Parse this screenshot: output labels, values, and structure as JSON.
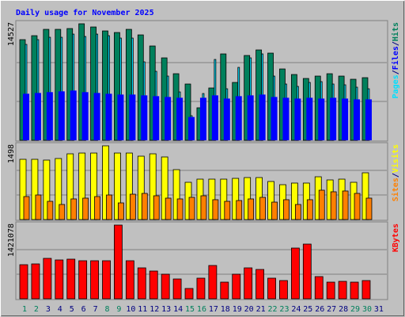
{
  "chart_data": [
    {
      "type": "bar",
      "title": "Daily usage for November 2025",
      "title_color": "#0000ff",
      "categories": [
        "1",
        "2",
        "3",
        "4",
        "5",
        "6",
        "7",
        "8",
        "9",
        "10",
        "11",
        "12",
        "13",
        "14",
        "15",
        "16",
        "17",
        "18",
        "19",
        "20",
        "21",
        "22",
        "23",
        "24",
        "25",
        "26",
        "27",
        "28",
        "29",
        "30",
        "31"
      ],
      "category_colors": [
        "#00805c",
        "#00805c",
        "#000080",
        "#000080",
        "#000080",
        "#000080",
        "#000080",
        "#00805c",
        "#00805c",
        "#000080",
        "#000080",
        "#000080",
        "#000080",
        "#000080",
        "#00805c",
        "#00805c",
        "#000080",
        "#000080",
        "#000080",
        "#000080",
        "#000080",
        "#00805c",
        "#00805c",
        "#000080",
        "#000080",
        "#000080",
        "#000080",
        "#000080",
        "#00805c",
        "#00805c",
        "#000080"
      ],
      "legend_separator": "/",
      "ylim": [
        0,
        14527
      ],
      "yticks": [
        14527
      ],
      "series": [
        {
          "name": "Hits",
          "color": "#00805c",
          "values": [
            12548,
            13042,
            13832,
            13832,
            13931,
            14527,
            14128,
            13634,
            13437,
            13832,
            13140,
            11757,
            10275,
            8299,
            7015,
            4051,
            6521,
            10769,
            7212,
            10572,
            11263,
            10868,
            8892,
            8200,
            7706,
            8003,
            8299,
            8003,
            7608,
            7805,
            0
          ]
        },
        {
          "name": "Files",
          "color": "#0000ff",
          "values": [
            5800,
            5900,
            6000,
            6100,
            6200,
            6000,
            5900,
            5800,
            5700,
            5700,
            5600,
            5500,
            5400,
            5300,
            2900,
            5300,
            5600,
            5200,
            5500,
            5600,
            5700,
            5400,
            5300,
            5200,
            5300,
            5200,
            5300,
            5200,
            5100,
            5100,
            0
          ]
        },
        {
          "name": "Pages",
          "color": "#00e0ff",
          "values": [
            11955,
            12548,
            12844,
            12844,
            13239,
            12943,
            13239,
            13042,
            12745,
            12745,
            9781,
            8596,
            8003,
            6027,
            3063,
            5829,
            10078,
            6422,
            9090,
            10275,
            10769,
            8003,
            7015,
            6718,
            7212,
            7311,
            7015,
            6916,
            6620,
            6422,
            0
          ]
        }
      ]
    },
    {
      "type": "bar",
      "ylim": [
        0,
        1498
      ],
      "yticks": [
        1498
      ],
      "series": [
        {
          "name": "Visits",
          "color": "#ffff00",
          "values": [
            1224,
            1224,
            1208,
            1240,
            1336,
            1352,
            1352,
            1498,
            1352,
            1352,
            1288,
            1336,
            1272,
            1014,
            757,
            821,
            821,
            821,
            837,
            853,
            853,
            773,
            708,
            741,
            741,
            869,
            805,
            821,
            757,
            950,
            0
          ]
        },
        {
          "name": "Sites",
          "color": "#ff8000",
          "values": [
            467,
            499,
            370,
            306,
            419,
            435,
            467,
            499,
            338,
            515,
            531,
            483,
            435,
            419,
            451,
            483,
            403,
            370,
            386,
            419,
            451,
            354,
            403,
            306,
            403,
            596,
            564,
            580,
            531,
            435,
            0
          ]
        }
      ]
    },
    {
      "type": "bar",
      "ylim": [
        0,
        1421078
      ],
      "yticks": [
        1421078
      ],
      "series": [
        {
          "name": "KBytes",
          "color": "#ff0000",
          "values": [
            657040,
            672320,
            779280,
            748720,
            764000,
            733440,
            733440,
            733440,
            1421078,
            733440,
            595920,
            534800,
            473680,
            382000,
            198640,
            397280,
            641760,
            320880,
            473680,
            595920,
            565360,
            397280,
            351440,
            977920,
            1054320,
            427840,
            320880,
            336160,
            320880,
            351440,
            0
          ]
        }
      ]
    }
  ]
}
